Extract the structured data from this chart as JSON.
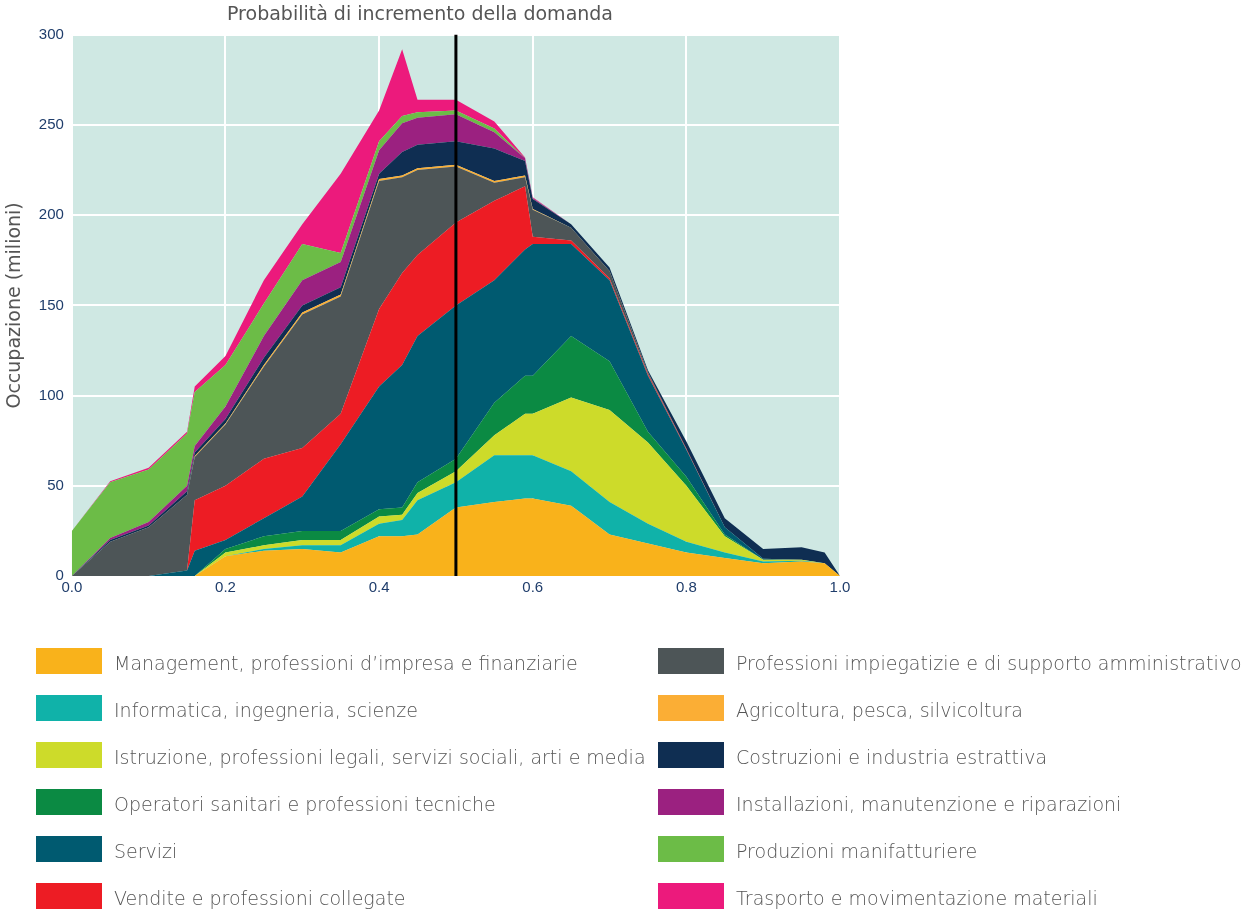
{
  "chart_data": {
    "type": "area",
    "stacked": true,
    "title": "Probabilità di incremento della domanda",
    "ylabel": "Occupazione (milioni)",
    "x": [
      0,
      0.05,
      0.1,
      0.15,
      0.16,
      0.2,
      0.25,
      0.3,
      0.35,
      0.4,
      0.43,
      0.45,
      0.5,
      0.55,
      0.59,
      0.6,
      0.65,
      0.7,
      0.75,
      0.8,
      0.85,
      0.9,
      0.95,
      0.98,
      1.0
    ],
    "xlim": [
      0,
      1
    ],
    "xticks": [
      {
        "value": 0,
        "label": "0.0"
      },
      {
        "value": 0.2,
        "label": "0.2"
      },
      {
        "value": 0.4,
        "label": "0.4"
      },
      {
        "value": 0.6,
        "label": "0.6"
      },
      {
        "value": 0.8,
        "label": "0.8"
      },
      {
        "value": 1,
        "label": "1.0"
      }
    ],
    "ylim": [
      0,
      300
    ],
    "yticks": [
      0,
      50,
      100,
      150,
      200,
      250,
      300
    ],
    "grid": true,
    "legend": "bottom",
    "ref_lines": [
      {
        "axis": "x",
        "value": 0.5,
        "color": "#000000"
      }
    ],
    "series": [
      {
        "name": "Management, professioni d’impresa e finanziarie",
        "color": "#f9b21b",
        "values": [
          0,
          0,
          0,
          0,
          0,
          11,
          14,
          15,
          13,
          22,
          22,
          23,
          38,
          41,
          43,
          43,
          39,
          23,
          18,
          13,
          10,
          7,
          8,
          7,
          0
        ]
      },
      {
        "name": "Informatica, ingegneria, scienze",
        "color": "#10b2a9",
        "values": [
          0,
          0,
          0,
          0,
          0,
          0,
          1,
          2,
          4,
          7,
          9,
          19,
          14,
          26,
          24,
          24,
          19,
          18,
          11,
          6,
          3,
          1,
          0.5,
          0,
          0
        ]
      },
      {
        "name": "Istruzione, professioni legali, servizi sociali, arti e media",
        "color": "#cddb2a",
        "values": [
          0,
          0,
          0,
          0,
          0,
          2,
          2,
          3,
          3,
          4,
          3,
          4,
          6,
          11,
          23,
          23,
          41,
          51,
          45,
          31,
          9,
          1,
          0.5,
          0,
          0
        ]
      },
      {
        "name": "Operatori sanitari e professioni tecniche",
        "color": "#0b8a43",
        "values": [
          0,
          0,
          0,
          0,
          0,
          2,
          5,
          5,
          5,
          4,
          4,
          6,
          7,
          18,
          21,
          21,
          34,
          27,
          6,
          5,
          1,
          0,
          0,
          0,
          0
        ]
      },
      {
        "name": "Servizi",
        "color": "#005a70",
        "values": [
          0,
          0,
          0,
          3,
          14,
          5,
          10,
          19,
          48,
          68,
          79,
          81,
          85,
          68,
          70,
          73,
          51,
          45,
          31,
          15,
          4,
          0.5,
          0,
          0,
          0
        ]
      },
      {
        "name": "Vendite e professioni collegate",
        "color": "#ed1c24",
        "values": [
          0,
          0,
          0,
          0,
          28,
          30,
          33,
          27,
          17,
          43,
          51,
          45,
          46,
          44,
          35,
          4,
          2,
          1,
          1,
          0.5,
          0,
          0,
          0,
          0,
          0
        ]
      },
      {
        "name": "Professioni impiegatizie e di supporto amministrativo",
        "color": "#4d5557",
        "values": [
          0,
          19,
          27,
          42,
          24,
          34,
          51,
          74,
          65,
          71,
          53,
          47,
          31,
          10,
          5,
          15,
          7,
          4,
          1,
          0,
          0,
          0,
          0,
          0,
          0
        ]
      },
      {
        "name": "Agricoltura, pesca, silvicoltura",
        "color": "#fbae35",
        "values": [
          0,
          0,
          0,
          0,
          0.5,
          0.5,
          1,
          1,
          1,
          1,
          1,
          1,
          1,
          1,
          1,
          0.5,
          0,
          0,
          0,
          0,
          0,
          0,
          0,
          0,
          0
        ]
      },
      {
        "name": "Costruzioni e industria estrattiva",
        "color": "#0f2e52",
        "values": [
          0,
          1,
          1,
          2,
          2,
          2.5,
          4,
          4,
          4,
          3,
          13,
          13,
          13,
          18,
          8,
          5.5,
          2,
          2,
          1,
          4,
          5,
          5.5,
          7,
          6,
          0
        ]
      },
      {
        "name": "Installazioni, manutenzione e riparazioni",
        "color": "#9b2180",
        "values": [
          0,
          1,
          2,
          3,
          3.5,
          7,
          12,
          14,
          14,
          13,
          16,
          15,
          15,
          9,
          1.5,
          0.5,
          0,
          0,
          0,
          0,
          0,
          0,
          0,
          0,
          0
        ]
      },
      {
        "name": "Produzioni manifatturiere",
        "color": "#6cbc47",
        "values": [
          25,
          31,
          29,
          29,
          30,
          23,
          18,
          20,
          5,
          5,
          4,
          3,
          2,
          2,
          0,
          0,
          0,
          0,
          0,
          0,
          0,
          0,
          0,
          0,
          0
        ]
      },
      {
        "name": "Trasporto e movimentazione materiali",
        "color": "#ec1a7c",
        "values": [
          0,
          0.5,
          1,
          1,
          3,
          5,
          13,
          11,
          44,
          17,
          37,
          7,
          6,
          4,
          0.5,
          0.5,
          0,
          0,
          0,
          0,
          0,
          0,
          0,
          0,
          0
        ]
      }
    ]
  }
}
